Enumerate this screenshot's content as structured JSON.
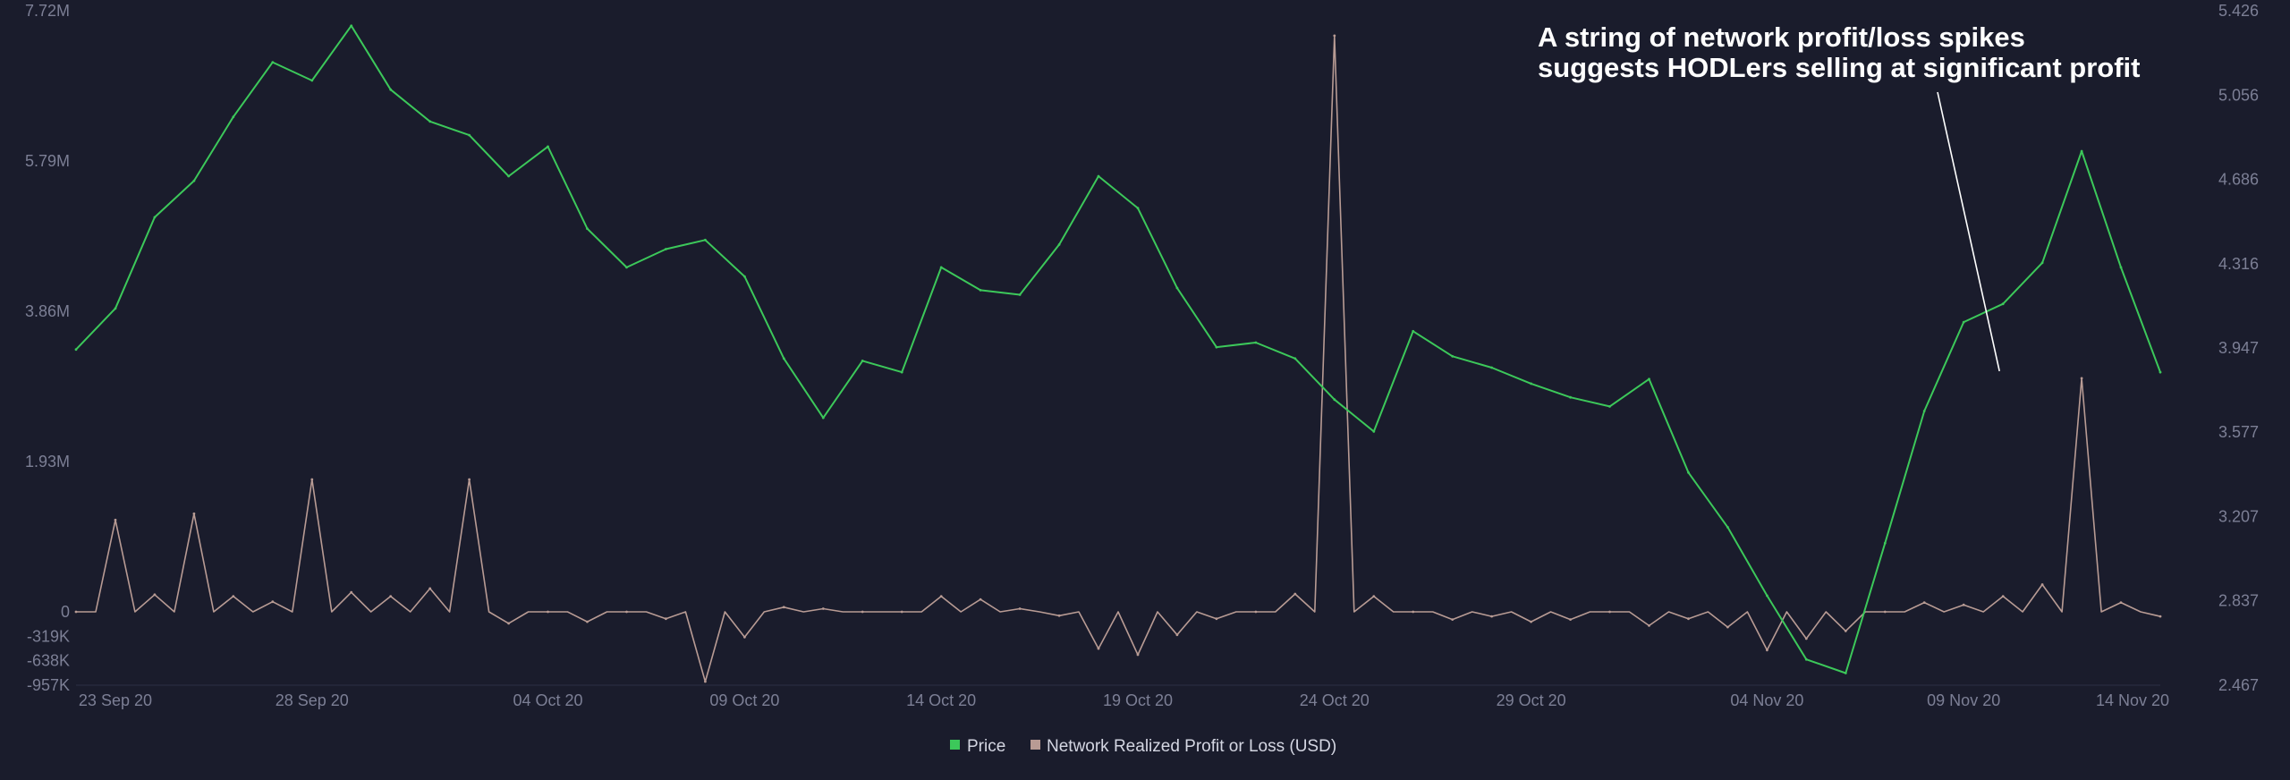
{
  "chart_data": {
    "type": "line",
    "x_axis": {
      "ticks": [
        "23 Sep 20",
        "28 Sep 20",
        "04 Oct 20",
        "09 Oct 20",
        "14 Oct 20",
        "19 Oct 20",
        "24 Oct 20",
        "29 Oct 20",
        "04 Nov 20",
        "09 Nov 20",
        "14 Nov 20"
      ],
      "range": [
        "2020-09-22",
        "2020-11-14"
      ]
    },
    "y_left": {
      "ticks": [
        "7.72M",
        "5.79M",
        "3.86M",
        "1.93M",
        "0",
        "-319K",
        "-638K",
        "-957K"
      ],
      "range": [
        -957000,
        7720000
      ]
    },
    "y_right": {
      "ticks": [
        "5.426",
        "5.056",
        "4.686",
        "4.316",
        "3.947",
        "3.577",
        "3.207",
        "2.837",
        "2.467"
      ],
      "range": [
        2.467,
        5.426
      ]
    },
    "grid": false,
    "legend_position": "bottom-center",
    "annotation": {
      "lines": [
        "A string of network profit/loss spikes",
        "suggests HODLers selling at significant profit"
      ],
      "points_to": {
        "date": "2020-11-10",
        "value": 3000000
      }
    },
    "series": [
      {
        "name": "Price",
        "axis": "right",
        "color": "#3cc85a",
        "points": [
          [
            "2020-09-22",
            3.94
          ],
          [
            "2020-09-23",
            4.12
          ],
          [
            "2020-09-24",
            4.52
          ],
          [
            "2020-09-25",
            4.68
          ],
          [
            "2020-09-26",
            4.96
          ],
          [
            "2020-09-27",
            5.2
          ],
          [
            "2020-09-28",
            5.12
          ],
          [
            "2020-09-29",
            5.36
          ],
          [
            "2020-09-30",
            5.08
          ],
          [
            "2020-10-01",
            4.94
          ],
          [
            "2020-10-02",
            4.88
          ],
          [
            "2020-10-03",
            4.7
          ],
          [
            "2020-10-04",
            4.83
          ],
          [
            "2020-10-05",
            4.47
          ],
          [
            "2020-10-06",
            4.3
          ],
          [
            "2020-10-07",
            4.38
          ],
          [
            "2020-10-08",
            4.42
          ],
          [
            "2020-10-09",
            4.26
          ],
          [
            "2020-10-10",
            3.9
          ],
          [
            "2020-10-11",
            3.64
          ],
          [
            "2020-10-12",
            3.89
          ],
          [
            "2020-10-13",
            3.84
          ],
          [
            "2020-10-14",
            4.3
          ],
          [
            "2020-10-15",
            4.2
          ],
          [
            "2020-10-16",
            4.18
          ],
          [
            "2020-10-17",
            4.4
          ],
          [
            "2020-10-18",
            4.7
          ],
          [
            "2020-10-19",
            4.56
          ],
          [
            "2020-10-20",
            4.21
          ],
          [
            "2020-10-21",
            3.95
          ],
          [
            "2020-10-22",
            3.97
          ],
          [
            "2020-10-23",
            3.9
          ],
          [
            "2020-10-24",
            3.72
          ],
          [
            "2020-10-25",
            3.58
          ],
          [
            "2020-10-26",
            4.02
          ],
          [
            "2020-10-27",
            3.91
          ],
          [
            "2020-10-28",
            3.86
          ],
          [
            "2020-10-29",
            3.79
          ],
          [
            "2020-10-30",
            3.73
          ],
          [
            "2020-10-31",
            3.69
          ],
          [
            "2020-11-01",
            3.81
          ],
          [
            "2020-11-02",
            3.4
          ],
          [
            "2020-11-03",
            3.16
          ],
          [
            "2020-11-04",
            2.86
          ],
          [
            "2020-11-05",
            2.58
          ],
          [
            "2020-11-06",
            2.52
          ],
          [
            "2020-11-07",
            3.09
          ],
          [
            "2020-11-08",
            3.67
          ],
          [
            "2020-11-09",
            4.06
          ],
          [
            "2020-11-10",
            4.14
          ],
          [
            "2020-11-11",
            4.32
          ],
          [
            "2020-11-12",
            4.81
          ],
          [
            "2020-11-13",
            4.3
          ],
          [
            "2020-11-14",
            3.84
          ]
        ]
      },
      {
        "name": "Network Realized Profit or Loss (USD)",
        "axis": "left",
        "color": "#b89b94",
        "points": [
          [
            "2020-09-22",
            0
          ],
          [
            "2020-09-23",
            1180000
          ],
          [
            "2020-09-24",
            220000
          ],
          [
            "2020-09-25",
            1260000
          ],
          [
            "2020-09-26",
            200000
          ],
          [
            "2020-09-27",
            130000
          ],
          [
            "2020-09-28",
            1700000
          ],
          [
            "2020-09-29",
            250000
          ],
          [
            "2020-09-30",
            200000
          ],
          [
            "2020-10-01",
            300000
          ],
          [
            "2020-10-02",
            1700000
          ],
          [
            "2020-10-03",
            -150000
          ],
          [
            "2020-10-04",
            0
          ],
          [
            "2020-10-05",
            -130000
          ],
          [
            "2020-10-06",
            0
          ],
          [
            "2020-10-07",
            -90000
          ],
          [
            "2020-10-08",
            -910000
          ],
          [
            "2020-10-09",
            -330000
          ],
          [
            "2020-10-10",
            60000
          ],
          [
            "2020-10-11",
            40000
          ],
          [
            "2020-10-12",
            0
          ],
          [
            "2020-10-13",
            0
          ],
          [
            "2020-10-14",
            200000
          ],
          [
            "2020-10-15",
            160000
          ],
          [
            "2020-10-16",
            40000
          ],
          [
            "2020-10-17",
            -50000
          ],
          [
            "2020-10-18",
            -480000
          ],
          [
            "2020-10-19",
            -560000
          ],
          [
            "2020-10-20",
            -300000
          ],
          [
            "2020-10-21",
            -90000
          ],
          [
            "2020-10-22",
            0
          ],
          [
            "2020-10-23",
            230000
          ],
          [
            "2020-10-24",
            7400000
          ],
          [
            "2020-10-25",
            200000
          ],
          [
            "2020-10-26",
            0
          ],
          [
            "2020-10-27",
            -100000
          ],
          [
            "2020-10-28",
            -60000
          ],
          [
            "2020-10-29",
            -130000
          ],
          [
            "2020-10-30",
            -100000
          ],
          [
            "2020-10-31",
            0
          ],
          [
            "2020-11-01",
            -180000
          ],
          [
            "2020-11-02",
            -90000
          ],
          [
            "2020-11-03",
            -200000
          ],
          [
            "2020-11-04",
            -500000
          ],
          [
            "2020-11-05",
            -350000
          ],
          [
            "2020-11-06",
            -250000
          ],
          [
            "2020-11-07",
            0
          ],
          [
            "2020-11-08",
            120000
          ],
          [
            "2020-11-09",
            90000
          ],
          [
            "2020-11-10",
            200000
          ],
          [
            "2020-11-11",
            350000
          ],
          [
            "2020-11-12",
            3000000
          ],
          [
            "2020-11-13",
            120000
          ],
          [
            "2020-11-14",
            -60000
          ]
        ]
      }
    ]
  }
}
